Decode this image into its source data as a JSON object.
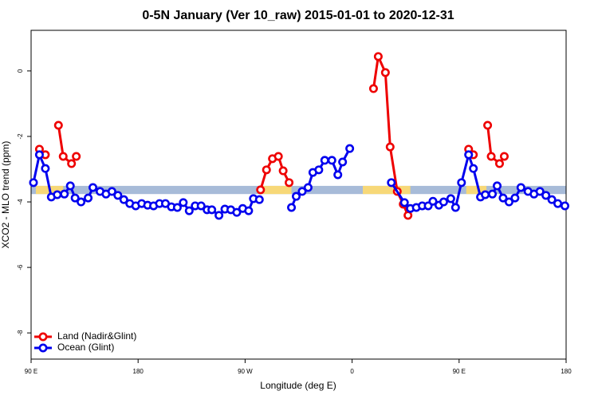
{
  "chart_data": {
    "type": "line",
    "title": "0-5N January (Ver 10_raw)   2015-01-01 to 2020-12-31",
    "x_label": "Longitude (deg E)",
    "y_label": "XCO2 - MLO trend (ppm)",
    "xlim": [
      90,
      540
    ],
    "ylim": [
      -8.8,
      1.24
    ],
    "xticks": [
      {
        "value": 90,
        "label": "90 E"
      },
      {
        "value": 180,
        "label": "180"
      },
      {
        "value": 270,
        "label": "90 W"
      },
      {
        "value": 360,
        "label": "0"
      },
      {
        "value": 450,
        "label": "90 E"
      },
      {
        "value": 540,
        "label": "180"
      }
    ],
    "yticks": [
      0,
      -2,
      -4,
      -6,
      -8
    ],
    "legend": "bottom-left",
    "band": {
      "range": [
        -3.76,
        -3.51
      ],
      "color": "#a7bbd8",
      "highlight_color": "#f7d878",
      "highlights": [
        [
          94,
          117
        ],
        [
          285,
          309
        ],
        [
          369,
          409
        ],
        [
          456,
          473
        ]
      ]
    },
    "series": [
      {
        "name": "Land (Nadir&Glint)",
        "color": "#ee0000",
        "x": [
          97,
          102,
          null,
          113,
          117,
          124,
          128,
          null,
          283,
          288,
          293,
          298,
          302,
          307,
          null,
          378,
          382,
          388,
          392,
          398,
          403,
          407,
          null,
          458,
          462,
          null,
          474,
          477,
          484,
          488
        ],
        "values": [
          -2.39,
          -2.56,
          null,
          -1.66,
          -2.61,
          -2.83,
          -2.61,
          null,
          -3.63,
          -3.02,
          -2.68,
          -2.61,
          -3.05,
          -3.41,
          null,
          -0.54,
          0.44,
          -0.05,
          -2.32,
          -3.68,
          -4.07,
          -4.41,
          null,
          -2.39,
          -2.56,
          null,
          -1.66,
          -2.61,
          -2.83,
          -2.61
        ]
      },
      {
        "name": "Ocean (Glint)",
        "color": "#0000ee",
        "x": [
          92,
          97,
          102,
          107,
          112,
          118,
          123,
          127,
          132,
          138,
          142,
          148,
          153,
          158,
          163,
          168,
          173,
          178,
          183,
          188,
          193,
          198,
          203,
          208,
          213,
          218,
          223,
          228,
          233,
          238,
          242,
          248,
          253,
          258,
          263,
          268,
          273,
          277,
          282,
          null,
          309,
          313,
          318,
          323,
          327,
          332,
          337,
          343,
          348,
          352,
          358,
          null,
          393,
          404,
          409,
          414,
          419,
          424,
          428,
          433,
          437,
          443,
          447,
          452,
          458,
          462,
          468,
          472,
          478,
          482,
          487,
          492,
          497,
          502,
          508,
          513,
          518,
          523,
          528,
          533,
          539
        ],
        "values": [
          -3.41,
          -2.56,
          -2.98,
          -3.85,
          -3.78,
          -3.76,
          -3.51,
          -3.88,
          -4.0,
          -3.88,
          -3.56,
          -3.68,
          -3.76,
          -3.68,
          -3.8,
          -3.93,
          -4.05,
          -4.12,
          -4.05,
          -4.1,
          -4.12,
          -4.05,
          -4.05,
          -4.15,
          -4.17,
          -4.02,
          -4.27,
          -4.12,
          -4.12,
          -4.24,
          -4.24,
          -4.41,
          -4.22,
          -4.24,
          -4.32,
          -4.2,
          -4.27,
          -3.9,
          -3.93,
          null,
          -4.17,
          -3.83,
          -3.68,
          -3.56,
          -3.1,
          -3.02,
          -2.73,
          -2.73,
          -3.17,
          -2.78,
          -2.37,
          null,
          -3.41,
          -4.02,
          -4.2,
          -4.17,
          -4.12,
          -4.12,
          -3.98,
          -4.1,
          -4.0,
          -3.9,
          -4.17,
          -3.41,
          -2.56,
          -2.98,
          -3.85,
          -3.78,
          -3.76,
          -3.51,
          -3.88,
          -4.0,
          -3.88,
          -3.56,
          -3.68,
          -3.76,
          -3.68,
          -3.8,
          -3.93,
          -4.05,
          -4.12
        ]
      }
    ]
  }
}
